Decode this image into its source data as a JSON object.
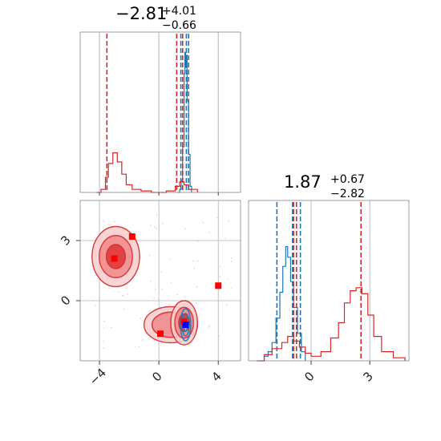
{
  "colors": {
    "blue": "#1f77b4",
    "red": "#d62728",
    "grid": "#b0b0b0",
    "frame": "#888888"
  },
  "chart_data": [
    {
      "type": "histogram",
      "panel": "top-left-1d",
      "title_value": "−2.81",
      "title_sup": "+4.01",
      "title_sub": "−0.66",
      "xlim": [
        -5.3,
        5.5
      ],
      "ylim": [
        0,
        1
      ],
      "grid": true,
      "series": [
        {
          "color": "blue",
          "bins": [
            [
              1.3,
              0.0
            ],
            [
              1.4,
              0.02
            ],
            [
              1.5,
              0.08
            ],
            [
              1.6,
              0.3
            ],
            [
              1.7,
              0.78
            ],
            [
              1.75,
              0.92
            ],
            [
              1.8,
              0.82
            ],
            [
              1.85,
              0.9
            ],
            [
              1.9,
              0.6
            ],
            [
              2.0,
              0.25
            ],
            [
              2.1,
              0.04
            ],
            [
              2.2,
              0.0
            ]
          ],
          "quantile_lines": [
            1.48,
            1.85,
            2.0
          ]
        },
        {
          "color": "red",
          "bins": [
            [
              -4.2,
              0.0
            ],
            [
              -3.9,
              0.02
            ],
            [
              -3.6,
              0.1
            ],
            [
              -3.4,
              0.19
            ],
            [
              -3.1,
              0.26
            ],
            [
              -2.8,
              0.2
            ],
            [
              -2.5,
              0.12
            ],
            [
              -2.2,
              0.05
            ],
            [
              -1.8,
              0.02
            ],
            [
              -1.2,
              0.01
            ],
            [
              -0.5,
              0.0
            ],
            [
              0.5,
              0.01
            ],
            [
              1.1,
              0.04
            ],
            [
              1.4,
              0.07
            ],
            [
              1.7,
              0.05
            ],
            [
              2.0,
              0.02
            ],
            [
              2.6,
              0.0
            ]
          ],
          "quantile_lines": [
            -3.5,
            1.2,
            1.6
          ]
        }
      ]
    },
    {
      "type": "contour-scatter",
      "panel": "bottom-left-2d",
      "xlim": [
        -5.3,
        5.5
      ],
      "ylim": [
        -3.0,
        5.0
      ],
      "xticks": [
        -4,
        0,
        4
      ],
      "yticks": [
        3,
        0
      ],
      "xtick_labels": [
        "−4",
        "0",
        "4"
      ],
      "ytick_labels": [
        "3",
        "0"
      ],
      "grid": true,
      "red_blobs": [
        {
          "cx": -2.9,
          "cy": 2.2,
          "rx": 1.6,
          "ry": 1.5,
          "levels": 3
        },
        {
          "cx": 0.8,
          "cy": -1.2,
          "rx": 1.8,
          "ry": 0.9,
          "levels": 2
        },
        {
          "cx": 1.7,
          "cy": -1.1,
          "rx": 0.9,
          "ry": 1.1,
          "levels": 3
        }
      ],
      "blue_blobs": [
        {
          "cx": 1.8,
          "cy": -1.2,
          "rx": 0.35,
          "ry": 0.8,
          "levels": 3
        }
      ],
      "red_markers": [
        [
          -3.0,
          2.1
        ],
        [
          -1.8,
          3.2
        ],
        [
          4.0,
          0.75
        ],
        [
          0.1,
          -1.65
        ],
        [
          1.7,
          -1.05
        ]
      ],
      "blue_markers": [
        [
          1.8,
          -1.2
        ]
      ]
    },
    {
      "type": "histogram",
      "panel": "bottom-right-1d",
      "title_value": "1.87",
      "title_sup": "+0.67",
      "title_sub": "−2.82",
      "xlim": [
        -3.2,
        5.0
      ],
      "ylim": [
        0,
        1
      ],
      "xticks": [
        0,
        3
      ],
      "xtick_labels": [
        "0",
        "3"
      ],
      "grid": true,
      "series": [
        {
          "color": "blue",
          "bins": [
            [
              -2.6,
              0.0
            ],
            [
              -2.4,
              0.03
            ],
            [
              -2.2,
              0.06
            ],
            [
              -2.0,
              0.12
            ],
            [
              -1.8,
              0.28
            ],
            [
              -1.6,
              0.45
            ],
            [
              -1.45,
              0.62
            ],
            [
              -1.3,
              0.75
            ],
            [
              -1.2,
              0.68
            ],
            [
              -1.05,
              0.52
            ],
            [
              -0.9,
              0.35
            ],
            [
              -0.7,
              0.18
            ],
            [
              -0.5,
              0.06
            ],
            [
              -0.3,
              0.0
            ]
          ],
          "quantile_lines": [
            -1.75,
            -0.95,
            -0.55
          ]
        },
        {
          "color": "red",
          "bins": [
            [
              -2.8,
              0.0
            ],
            [
              -2.4,
              0.04
            ],
            [
              -2.0,
              0.08
            ],
            [
              -1.5,
              0.12
            ],
            [
              -1.2,
              0.16
            ],
            [
              -0.9,
              0.13
            ],
            [
              -0.6,
              0.09
            ],
            [
              -0.3,
              0.05
            ],
            [
              0.0,
              0.03
            ],
            [
              0.5,
              0.06
            ],
            [
              1.0,
              0.15
            ],
            [
              1.4,
              0.25
            ],
            [
              1.7,
              0.38
            ],
            [
              2.0,
              0.46
            ],
            [
              2.3,
              0.48
            ],
            [
              2.6,
              0.44
            ],
            [
              2.9,
              0.3
            ],
            [
              3.2,
              0.16
            ],
            [
              3.6,
              0.06
            ],
            [
              4.2,
              0.02
            ],
            [
              4.8,
              0.0
            ]
          ],
          "quantile_lines": [
            -0.9,
            -0.75,
            2.55
          ]
        }
      ]
    }
  ]
}
